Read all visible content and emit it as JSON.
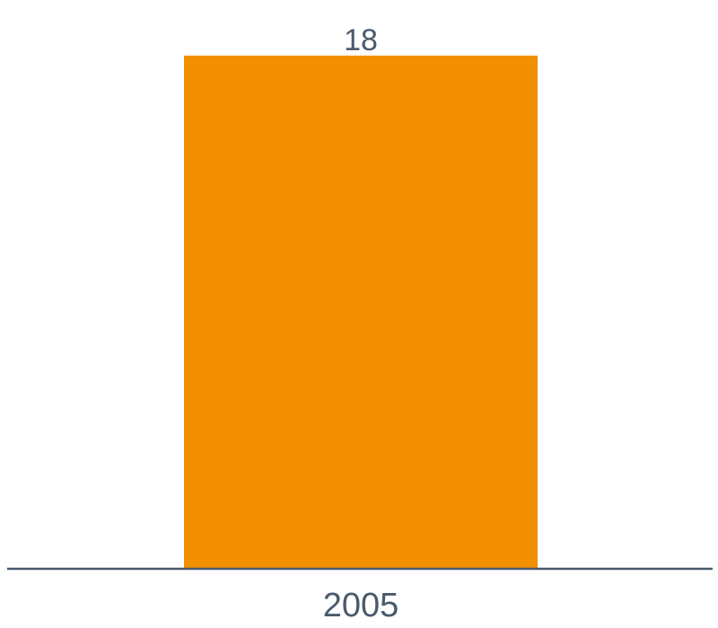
{
  "chart_data": {
    "type": "bar",
    "categories": [
      "2005"
    ],
    "values": [
      18
    ],
    "data_labels": [
      "18"
    ],
    "title": "",
    "xlabel": "",
    "ylabel": "",
    "ylim": [
      0,
      18
    ],
    "grid": false,
    "legend": "none"
  },
  "colors": {
    "bar": "#f28f00",
    "axis": "#4a5a6b",
    "text": "#4a5a6b",
    "background": "#ffffff"
  }
}
